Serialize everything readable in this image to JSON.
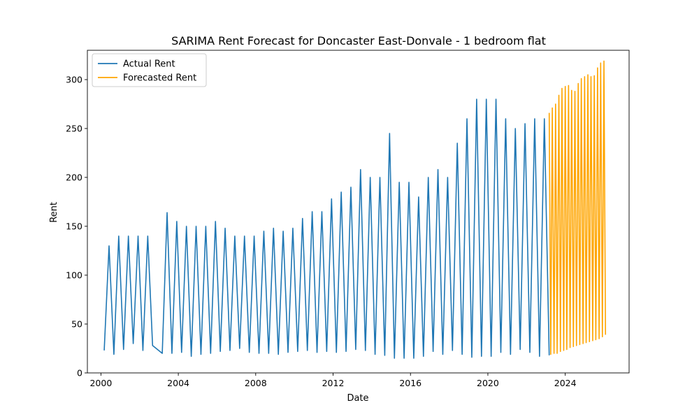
{
  "chart_data": {
    "type": "line",
    "title": "SARIMA Rent Forecast for Doncaster East-Donvale - 1 bedroom flat",
    "xlabel": "Date",
    "ylabel": "Rent",
    "xlim": [
      1999.3,
      2027.3
    ],
    "ylim": [
      0,
      330
    ],
    "x_ticks": [
      2000,
      2004,
      2008,
      2012,
      2016,
      2020,
      2024
    ],
    "x_tick_labels": [
      "2000",
      "2004",
      "2008",
      "2012",
      "2016",
      "2020",
      "2024"
    ],
    "y_ticks": [
      0,
      50,
      100,
      150,
      200,
      250,
      300
    ],
    "y_tick_labels": [
      "0",
      "50",
      "100",
      "150",
      "200",
      "250",
      "300"
    ],
    "legend": {
      "placement": "top-left",
      "entries": [
        {
          "label": "Actual Rent",
          "color": "#1f77b4"
        },
        {
          "label": "Forecasted Rent",
          "color": "#ffa500"
        }
      ]
    },
    "series": [
      {
        "name": "Actual Rent",
        "color": "#1f77b4",
        "x": [
          2000.17,
          2000.42,
          2000.67,
          2000.92,
          2001.17,
          2001.42,
          2001.67,
          2001.92,
          2002.17,
          2002.42,
          2002.67,
          2003.17,
          2003.42,
          2003.67,
          2003.92,
          2004.17,
          2004.42,
          2004.67,
          2004.92,
          2005.17,
          2005.42,
          2005.67,
          2005.92,
          2006.17,
          2006.42,
          2006.67,
          2006.92,
          2007.17,
          2007.42,
          2007.67,
          2007.92,
          2008.17,
          2008.42,
          2008.67,
          2008.92,
          2009.17,
          2009.42,
          2009.67,
          2009.92,
          2010.17,
          2010.42,
          2010.67,
          2010.92,
          2011.17,
          2011.42,
          2011.67,
          2011.92,
          2012.17,
          2012.42,
          2012.67,
          2012.92,
          2013.17,
          2013.42,
          2013.67,
          2013.92,
          2014.17,
          2014.42,
          2014.67,
          2014.92,
          2015.17,
          2015.42,
          2015.67,
          2015.92,
          2016.17,
          2016.42,
          2016.67,
          2016.92,
          2017.17,
          2017.42,
          2017.67,
          2017.92,
          2018.17,
          2018.42,
          2018.67,
          2018.92,
          2019.17,
          2019.42,
          2019.67,
          2019.92,
          2020.17,
          2020.42,
          2020.67,
          2020.92,
          2021.17,
          2021.42,
          2021.67,
          2021.92,
          2022.17,
          2022.42,
          2022.67,
          2022.92,
          2023.17
        ],
        "values": [
          23,
          130,
          19,
          140,
          24,
          140,
          30,
          140,
          23,
          140,
          28,
          20,
          164,
          20,
          155,
          21,
          150,
          17,
          150,
          19,
          150,
          20,
          155,
          22,
          148,
          23,
          140,
          25,
          140,
          21,
          140,
          20,
          145,
          20,
          148,
          19,
          145,
          21,
          148,
          22,
          158,
          23,
          165,
          21,
          165,
          22,
          178,
          21,
          185,
          22,
          190,
          24,
          208,
          23,
          200,
          19,
          200,
          18,
          245,
          15,
          195,
          15,
          195,
          15,
          180,
          17,
          200,
          22,
          208,
          19,
          200,
          23,
          235,
          19,
          260,
          16,
          280,
          17,
          280,
          17,
          280,
          21,
          260,
          19,
          250,
          24,
          255,
          21,
          260,
          17,
          260,
          18
        ]
      },
      {
        "name": "Forecasted Rent",
        "color": "#ffa500",
        "x": [
          2023.17,
          2023.25,
          2023.33,
          2023.42,
          2023.5,
          2023.58,
          2023.67,
          2023.75,
          2023.83,
          2023.92,
          2024.0,
          2024.08,
          2024.17,
          2024.25,
          2024.33,
          2024.42,
          2024.5,
          2024.58,
          2024.67,
          2024.75,
          2024.83,
          2024.92,
          2025.0,
          2025.08,
          2025.17,
          2025.25,
          2025.33,
          2025.42,
          2025.5,
          2025.58,
          2025.67,
          2025.75,
          2025.83,
          2025.92,
          2026.0,
          2026.08
        ],
        "values": [
          266,
          19,
          271,
          20,
          275,
          20,
          284,
          22,
          291,
          23,
          293,
          24,
          294,
          26,
          289,
          27,
          288,
          28,
          296,
          29,
          301,
          30,
          303,
          31,
          305,
          32,
          303,
          33,
          304,
          34,
          312,
          35,
          317,
          37,
          319,
          39
        ]
      }
    ]
  }
}
